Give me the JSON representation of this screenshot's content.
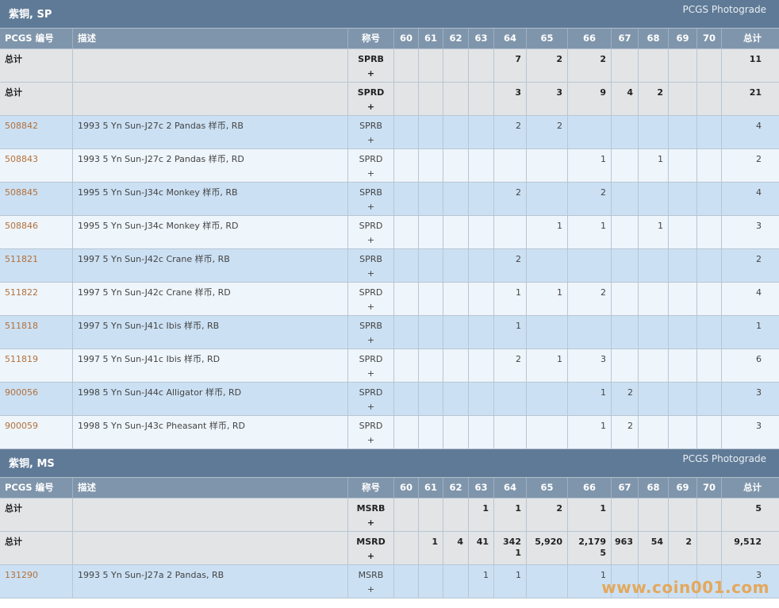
{
  "columns": {
    "id": "PCGS 编号",
    "desc": "描述",
    "des": "称号",
    "grades": [
      "60",
      "61",
      "62",
      "63",
      "64",
      "65",
      "66",
      "67",
      "68",
      "69",
      "70"
    ],
    "total": "总计"
  },
  "sections": [
    {
      "title": "紫铜, SP",
      "link": "PCGS Photograde",
      "rows": [
        {
          "type": "total",
          "id": "总计",
          "desc": "",
          "des": "SPRB",
          "plus": "+",
          "grades": [
            "",
            "",
            "",
            "",
            "7",
            "2",
            "2",
            "",
            "",
            "",
            ""
          ],
          "total": "11"
        },
        {
          "type": "total",
          "id": "总计",
          "desc": "",
          "des": "SPRD",
          "plus": "+",
          "grades": [
            "",
            "",
            "",
            "",
            "3",
            "3",
            "9",
            "4",
            "2",
            "",
            ""
          ],
          "total": "21"
        },
        {
          "type": "item",
          "id": "508842",
          "desc": "1993 5 Yn Sun-J27c 2 Pandas 样币, RB",
          "des": "SPRB",
          "plus": "+",
          "grades": [
            "",
            "",
            "",
            "",
            "2",
            "2",
            "",
            "",
            "",
            "",
            ""
          ],
          "total": "4"
        },
        {
          "type": "item",
          "id": "508843",
          "desc": "1993 5 Yn Sun-J27c 2 Pandas 样币, RD",
          "des": "SPRD",
          "plus": "+",
          "grades": [
            "",
            "",
            "",
            "",
            "",
            "",
            "1",
            "",
            "1",
            "",
            ""
          ],
          "total": "2"
        },
        {
          "type": "item",
          "id": "508845",
          "desc": "1995 5 Yn Sun-J34c Monkey 样币, RB",
          "des": "SPRB",
          "plus": "+",
          "grades": [
            "",
            "",
            "",
            "",
            "2",
            "",
            "2",
            "",
            "",
            "",
            ""
          ],
          "total": "4"
        },
        {
          "type": "item",
          "id": "508846",
          "desc": "1995 5 Yn Sun-J34c Monkey 样币, RD",
          "des": "SPRD",
          "plus": "+",
          "grades": [
            "",
            "",
            "",
            "",
            "",
            "1",
            "1",
            "",
            "1",
            "",
            ""
          ],
          "total": "3"
        },
        {
          "type": "item",
          "id": "511821",
          "desc": "1997 5 Yn Sun-J42c Crane 样币, RB",
          "des": "SPRB",
          "plus": "+",
          "grades": [
            "",
            "",
            "",
            "",
            "2",
            "",
            "",
            "",
            "",
            "",
            ""
          ],
          "total": "2"
        },
        {
          "type": "item",
          "id": "511822",
          "desc": "1997 5 Yn Sun-J42c Crane 样币, RD",
          "des": "SPRD",
          "plus": "+",
          "grades": [
            "",
            "",
            "",
            "",
            "1",
            "1",
            "2",
            "",
            "",
            "",
            ""
          ],
          "total": "4"
        },
        {
          "type": "item",
          "id": "511818",
          "desc": "1997 5 Yn Sun-J41c Ibis 样币, RB",
          "des": "SPRB",
          "plus": "+",
          "grades": [
            "",
            "",
            "",
            "",
            "1",
            "",
            "",
            "",
            "",
            "",
            ""
          ],
          "total": "1"
        },
        {
          "type": "item",
          "id": "511819",
          "desc": "1997 5 Yn Sun-J41c Ibis 样币, RD",
          "des": "SPRD",
          "plus": "+",
          "grades": [
            "",
            "",
            "",
            "",
            "2",
            "1",
            "3",
            "",
            "",
            "",
            ""
          ],
          "total": "6"
        },
        {
          "type": "item",
          "id": "900056",
          "desc": "1998 5 Yn Sun-J44c Alligator 样币, RD",
          "des": "SPRD",
          "plus": "+",
          "grades": [
            "",
            "",
            "",
            "",
            "",
            "",
            "1",
            "2",
            "",
            "",
            ""
          ],
          "total": "3"
        },
        {
          "type": "item",
          "id": "900059",
          "desc": "1998 5 Yn Sun-J43c Pheasant 样币, RD",
          "des": "SPRD",
          "plus": "+",
          "grades": [
            "",
            "",
            "",
            "",
            "",
            "",
            "1",
            "2",
            "",
            "",
            ""
          ],
          "total": "3"
        }
      ]
    },
    {
      "title": "紫铜, MS",
      "link": "PCGS Photograde",
      "rows": [
        {
          "type": "total",
          "id": "总计",
          "desc": "",
          "des": "MSRB",
          "plus": "+",
          "grades": [
            "",
            "",
            "",
            "1",
            "1",
            "2",
            "1",
            "",
            "",
            "",
            ""
          ],
          "total": "5"
        },
        {
          "type": "total",
          "id": "总计",
          "desc": "",
          "des": "MSRD",
          "plus": "+",
          "grades": [
            "",
            "1",
            "4",
            "41",
            "342\n1",
            "5,920",
            "2,179\n5",
            "963",
            "54",
            "2",
            ""
          ],
          "total": "9,512"
        },
        {
          "type": "item",
          "id": "131290",
          "desc": "1993 5 Yn Sun-J27a 2 Pandas, RB",
          "des": "MSRB",
          "plus": "+",
          "grades": [
            "",
            "",
            "",
            "1",
            "1",
            "",
            "1",
            "",
            "",
            "",
            ""
          ],
          "total": "3"
        }
      ]
    }
  ],
  "watermark": "www.coin001.com"
}
